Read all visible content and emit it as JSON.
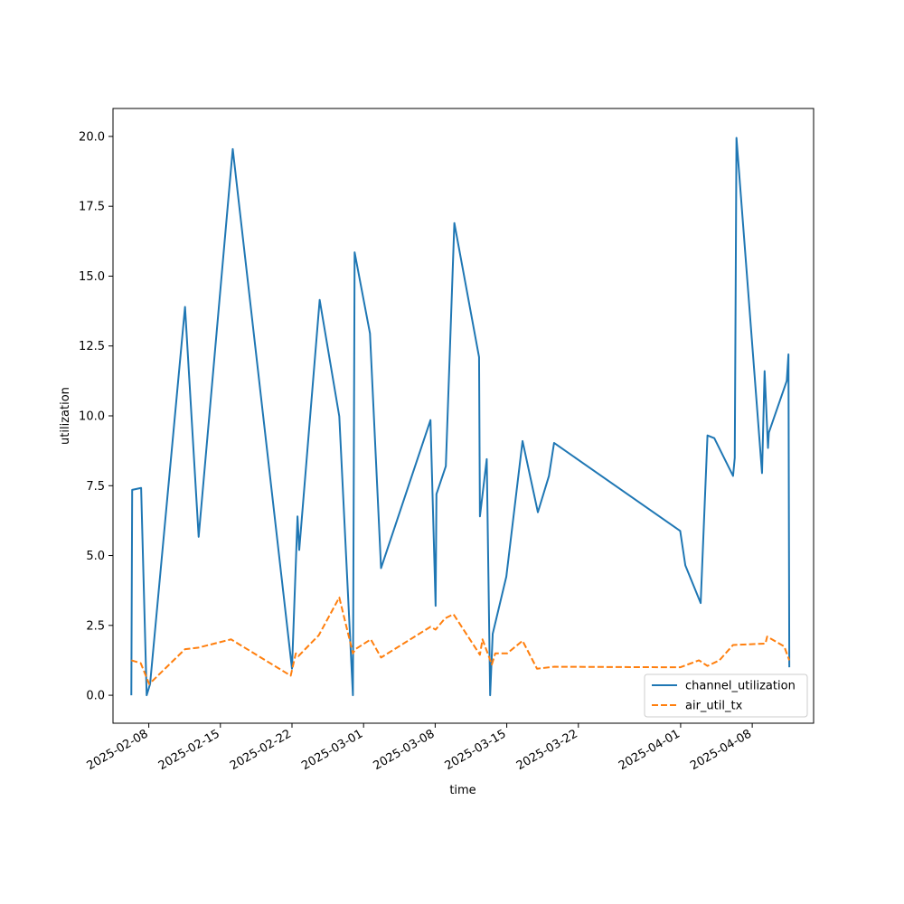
{
  "chart_data": {
    "type": "line",
    "title": "",
    "xlabel": "time",
    "ylabel": "utilization",
    "x_axis_type": "date",
    "xlim": [
      "2025-02-04T12:00",
      "2025-04-14T00:00"
    ],
    "ylim": [
      -1.0,
      21.0
    ],
    "x_tick_labels": [
      "2025-02-08",
      "2025-02-15",
      "2025-02-22",
      "2025-03-01",
      "2025-03-08",
      "2025-03-15",
      "2025-03-22",
      "2025-04-01",
      "2025-04-08"
    ],
    "y_tick_values": [
      0.0,
      2.5,
      5.0,
      7.5,
      10.0,
      12.5,
      15.0,
      17.5,
      20.0
    ],
    "y_tick_labels": [
      "0.0",
      "2.5",
      "5.0",
      "7.5",
      "10.0",
      "12.5",
      "15.0",
      "17.5",
      "20.0"
    ],
    "grid": false,
    "legend_position": "lower-right",
    "series": [
      {
        "name": "channel_utilization",
        "color": "#1f77b4",
        "style": "solid",
        "points": [
          [
            "2025-02-06T07:00",
            0.0
          ],
          [
            "2025-02-06T09:00",
            7.35
          ],
          [
            "2025-02-07T06:00",
            7.42
          ],
          [
            "2025-02-07T19:00",
            0.0
          ],
          [
            "2025-02-08T03:00",
            0.4
          ],
          [
            "2025-02-11T13:00",
            13.9
          ],
          [
            "2025-02-12T21:00",
            5.67
          ],
          [
            "2025-02-16T05:00",
            19.55
          ],
          [
            "2025-02-22T00:00",
            0.95
          ],
          [
            "2025-02-22T13:00",
            6.4
          ],
          [
            "2025-02-22T17:00",
            5.2
          ],
          [
            "2025-02-24T17:00",
            14.15
          ],
          [
            "2025-02-26T15:00",
            9.98
          ],
          [
            "2025-02-27T23:00",
            0.0
          ],
          [
            "2025-02-28T03:00",
            15.85
          ],
          [
            "2025-03-01T15:00",
            12.95
          ],
          [
            "2025-03-02T17:00",
            4.55
          ],
          [
            "2025-03-07T13:00",
            9.85
          ],
          [
            "2025-03-08T01:00",
            3.2
          ],
          [
            "2025-03-08T03:00",
            7.2
          ],
          [
            "2025-03-09T01:00",
            8.2
          ],
          [
            "2025-03-09T21:00",
            16.9
          ],
          [
            "2025-03-12T07:00",
            12.1
          ],
          [
            "2025-03-12T09:00",
            6.4
          ],
          [
            "2025-03-13T01:00",
            8.45
          ],
          [
            "2025-03-13T09:00",
            0.0
          ],
          [
            "2025-03-13T15:00",
            2.2
          ],
          [
            "2025-03-14T23:00",
            4.25
          ],
          [
            "2025-03-16T13:00",
            9.1
          ],
          [
            "2025-03-18T01:00",
            6.55
          ],
          [
            "2025-03-19T03:00",
            7.85
          ],
          [
            "2025-03-19T15:00",
            9.03
          ],
          [
            "2025-03-31T23:00",
            5.88
          ],
          [
            "2025-04-01T11:00",
            4.65
          ],
          [
            "2025-04-02T23:00",
            3.3
          ],
          [
            "2025-04-03T15:00",
            9.3
          ],
          [
            "2025-04-04T07:00",
            9.2
          ],
          [
            "2025-04-06T03:00",
            7.85
          ],
          [
            "2025-04-06T07:00",
            8.5
          ],
          [
            "2025-04-06T11:00",
            19.95
          ],
          [
            "2025-04-08T23:00",
            7.95
          ],
          [
            "2025-04-09T05:00",
            11.6
          ],
          [
            "2025-04-09T13:00",
            8.85
          ],
          [
            "2025-04-09T15:00",
            9.4
          ],
          [
            "2025-04-11T09:00",
            11.25
          ],
          [
            "2025-04-11T13:00",
            12.2
          ],
          [
            "2025-04-11T15:00",
            1.0
          ]
        ]
      },
      {
        "name": "air_util_tx",
        "color": "#ff7f0e",
        "style": "dashed",
        "points": [
          [
            "2025-02-06T07:00",
            1.25
          ],
          [
            "2025-02-07T05:00",
            1.15
          ],
          [
            "2025-02-08T01:00",
            0.4
          ],
          [
            "2025-02-11T13:00",
            1.65
          ],
          [
            "2025-02-12T19:00",
            1.7
          ],
          [
            "2025-02-16T01:00",
            2.0
          ],
          [
            "2025-02-21T21:00",
            0.7
          ],
          [
            "2025-02-22T09:00",
            1.5
          ],
          [
            "2025-02-22T15:00",
            1.4
          ],
          [
            "2025-02-24T15:00",
            2.15
          ],
          [
            "2025-02-26T15:00",
            3.5
          ],
          [
            "2025-02-27T23:00",
            1.5
          ],
          [
            "2025-02-28T05:00",
            1.65
          ],
          [
            "2025-03-01T17:00",
            2.0
          ],
          [
            "2025-03-02T17:00",
            1.35
          ],
          [
            "2025-03-07T13:00",
            2.45
          ],
          [
            "2025-03-08T01:00",
            2.35
          ],
          [
            "2025-03-08T23:00",
            2.75
          ],
          [
            "2025-03-09T19:00",
            2.9
          ],
          [
            "2025-03-12T09:00",
            1.45
          ],
          [
            "2025-03-12T15:00",
            2.0
          ],
          [
            "2025-03-13T13:00",
            1.1
          ],
          [
            "2025-03-13T21:00",
            1.5
          ],
          [
            "2025-03-15T01:00",
            1.5
          ],
          [
            "2025-03-16T13:00",
            1.95
          ],
          [
            "2025-03-17T23:00",
            0.95
          ],
          [
            "2025-03-19T15:00",
            1.02
          ],
          [
            "2025-03-31T23:00",
            1.0
          ],
          [
            "2025-04-02T19:00",
            1.25
          ],
          [
            "2025-04-03T15:00",
            1.05
          ],
          [
            "2025-04-04T19:00",
            1.25
          ],
          [
            "2025-04-06T03:00",
            1.8
          ],
          [
            "2025-04-09T07:00",
            1.85
          ],
          [
            "2025-04-09T11:00",
            2.1
          ],
          [
            "2025-04-11T03:00",
            1.75
          ],
          [
            "2025-04-11T15:00",
            1.25
          ]
        ]
      }
    ]
  }
}
